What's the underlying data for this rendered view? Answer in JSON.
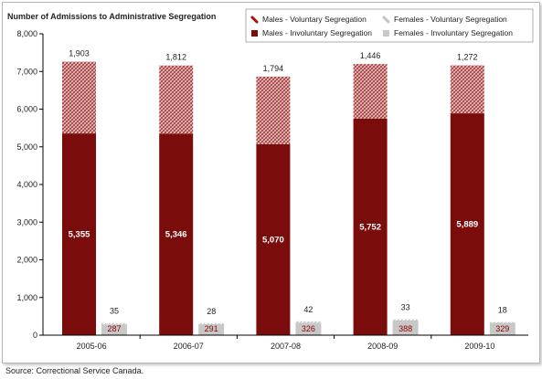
{
  "chart_data": {
    "type": "bar",
    "title": "Number of Admissions to Administrative Segregation",
    "categories": [
      "2005-06",
      "2006-07",
      "2007-08",
      "2008-09",
      "2009-10"
    ],
    "ylim": [
      0,
      8000
    ],
    "yticks": [
      "0",
      "1,000",
      "2,000",
      "3,000",
      "4,000",
      "5,000",
      "6,000",
      "7,000",
      "8,000"
    ],
    "ytick_values": [
      0,
      1000,
      2000,
      3000,
      4000,
      5000,
      6000,
      7000,
      8000
    ],
    "grid": false,
    "legend_position": "top-right",
    "stacked": true,
    "series": [
      {
        "name": "Males - Involuntary Segregation",
        "group": "males",
        "values": [
          5355,
          5346,
          5070,
          5752,
          5889
        ],
        "labels": [
          "5,355",
          "5,346",
          "5,070",
          "5,752",
          "5,889"
        ],
        "color": "#7b0c0c"
      },
      {
        "name": "Males - Voluntary Segregation",
        "group": "males",
        "values": [
          1903,
          1812,
          1794,
          1446,
          1272
        ],
        "labels": [
          "1,903",
          "1,812",
          "1,794",
          "1,446",
          "1,272"
        ],
        "color": "#c88a8a"
      },
      {
        "name": "Females - Involuntary Segregation",
        "group": "females",
        "values": [
          287,
          291,
          326,
          388,
          329
        ],
        "labels": [
          "287",
          "291",
          "326",
          "388",
          "329"
        ],
        "color": "#c8c8c8"
      },
      {
        "name": "Females - Voluntary Segregation",
        "group": "females",
        "values": [
          35,
          28,
          42,
          33,
          18
        ],
        "labels": [
          "35",
          "28",
          "42",
          "33",
          "18"
        ],
        "color": "#d9d9d9"
      }
    ],
    "legend": [
      {
        "name": "Males - Voluntary Segregation",
        "icon": "red-stripe-icon"
      },
      {
        "name": "Females - Voluntary Segregation",
        "icon": "gray-stripe-icon"
      },
      {
        "name": "Males - Involuntary Segregation",
        "icon": "dark-red-square-icon"
      },
      {
        "name": "Females - Involuntary Segregation",
        "icon": "gray-square-icon"
      }
    ]
  },
  "source": "Source:  Correctional Service Canada."
}
